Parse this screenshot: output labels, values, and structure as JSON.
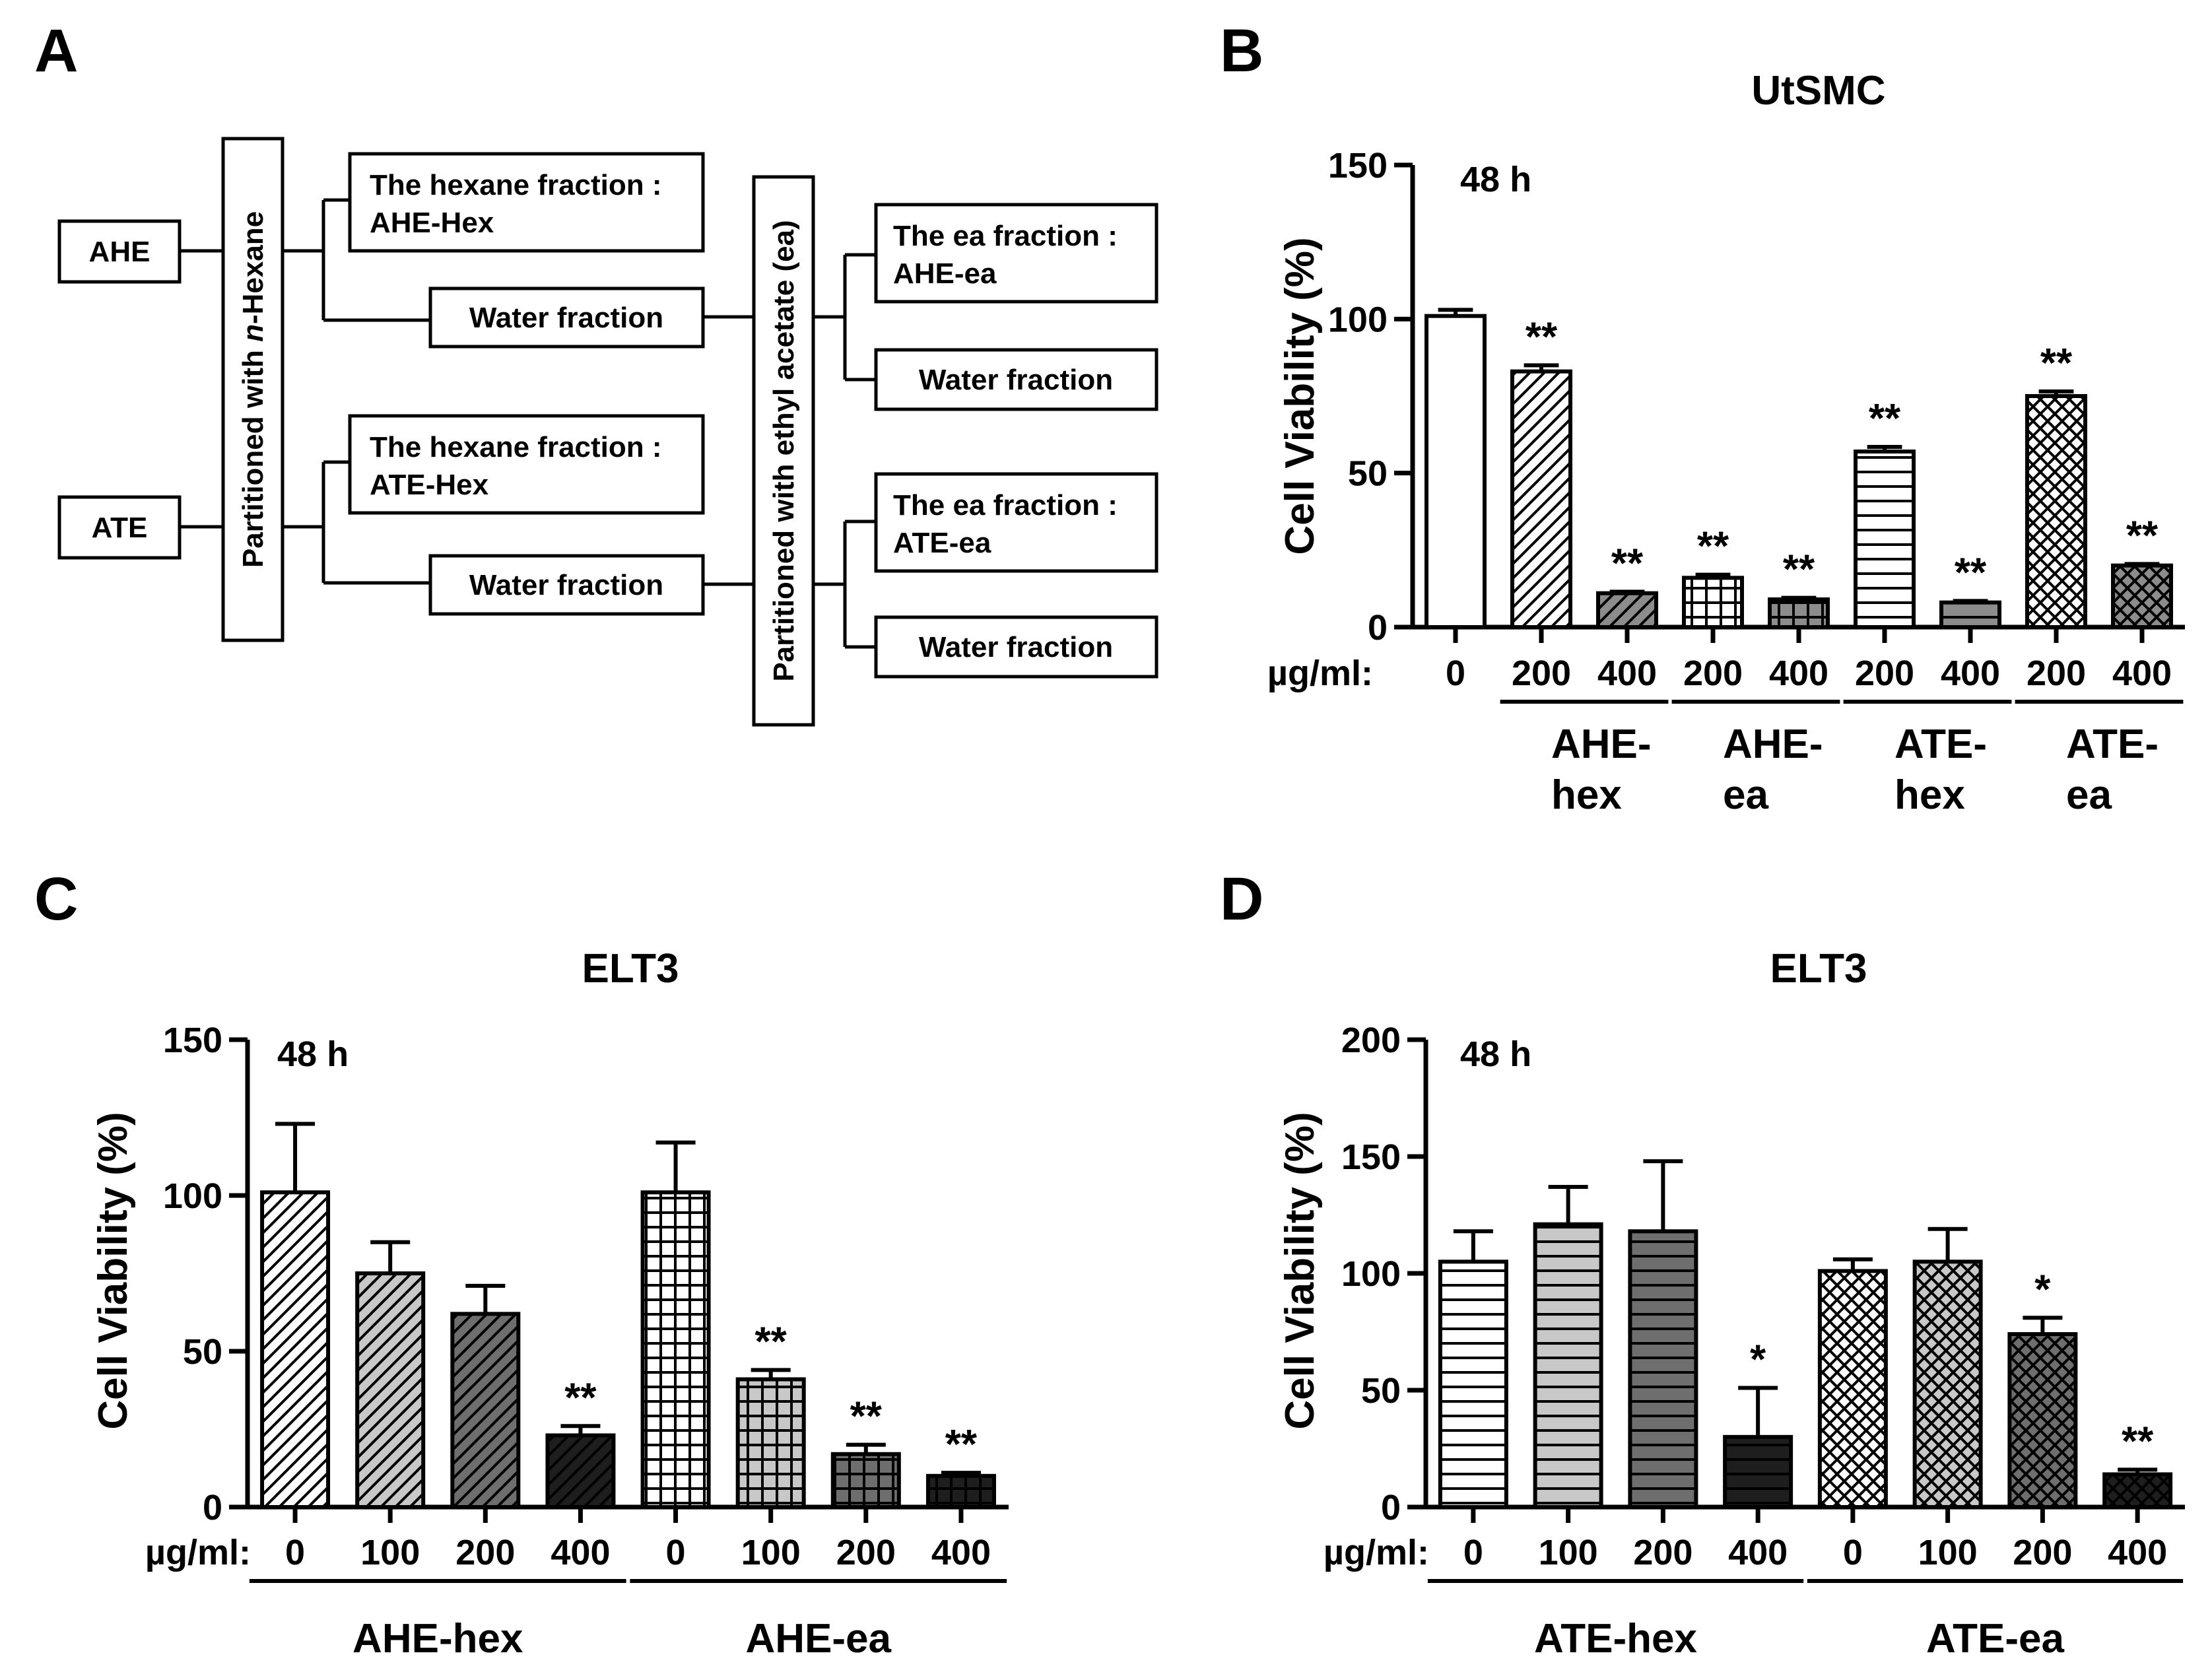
{
  "panels": {
    "A": "A",
    "B": "B",
    "C": "C",
    "D": "D"
  },
  "flowchart": {
    "nodes": [
      {
        "id": "ahe",
        "label": "AHE"
      },
      {
        "id": "ate",
        "label": "ATE"
      },
      {
        "id": "part-hex",
        "label": "Partitioned with n-Hexane",
        "pre": "Partitioned with ",
        "ital": "n",
        "post": "-Hexane"
      },
      {
        "id": "ahe-hex",
        "line1": "The hexane fraction :",
        "line2": "AHE-Hex"
      },
      {
        "id": "ate-hex",
        "line1": "The hexane fraction :",
        "line2": "ATE-Hex"
      },
      {
        "id": "water-ahe",
        "label": "Water fraction"
      },
      {
        "id": "water-ate",
        "label": "Water fraction"
      },
      {
        "id": "part-ea",
        "label": "Partitioned with ethyl acetate (ea)"
      },
      {
        "id": "ahe-ea",
        "line1": "The ea fraction :",
        "line2": "AHE-ea"
      },
      {
        "id": "water-ahe-ea",
        "label": "Water fraction"
      },
      {
        "id": "ate-ea",
        "line1": "The ea fraction :",
        "line2": "ATE-ea"
      },
      {
        "id": "water-ate-ea",
        "label": "Water fraction"
      }
    ]
  },
  "chart_data": [
    {
      "panel": "B",
      "type": "bar",
      "title": "UtSMC",
      "annotation": "48 h",
      "ylabel": "Cell Viability (%)",
      "xprefix": "µg/ml:",
      "ylim": [
        0,
        150
      ],
      "yticks": [
        0,
        50,
        100,
        150
      ],
      "categories": [
        "0",
        "200",
        "400",
        "200",
        "400",
        "200",
        "400",
        "200",
        "400"
      ],
      "values": [
        101,
        83,
        11,
        16,
        9,
        57,
        8,
        75,
        20
      ],
      "errors": [
        2,
        2,
        0.5,
        1,
        0.5,
        1.5,
        0.5,
        1.5,
        0.5
      ],
      "significance": [
        "",
        "**",
        "**",
        "**",
        "**",
        "**",
        "**",
        "**",
        "**"
      ],
      "patterns": [
        "white",
        "diag-white",
        "diag-gray",
        "grid-white",
        "grid-gray",
        "hstripe-white",
        "hstripe-gray",
        "cross-white",
        "cross-gray"
      ],
      "groups": [
        {
          "line1": "AHE-",
          "line2": "hex",
          "start": 1,
          "end": 2
        },
        {
          "line1": "AHE-",
          "line2": "ea",
          "start": 3,
          "end": 4
        },
        {
          "line1": "ATE-",
          "line2": "hex",
          "start": 5,
          "end": 6
        },
        {
          "line1": "ATE-",
          "line2": "ea",
          "start": 7,
          "end": 8
        }
      ]
    },
    {
      "panel": "C",
      "type": "bar",
      "title": "ELT3",
      "annotation": "48 h",
      "ylabel": "Cell Viability (%)",
      "xprefix": "µg/ml:",
      "ylim": [
        0,
        150
      ],
      "yticks": [
        0,
        50,
        100,
        150
      ],
      "categories": [
        "0",
        "100",
        "200",
        "400",
        "0",
        "100",
        "200",
        "400"
      ],
      "values": [
        101,
        75,
        62,
        23,
        101,
        41,
        17,
        10
      ],
      "errors": [
        22,
        10,
        9,
        3,
        16,
        3,
        3,
        1
      ],
      "significance": [
        "",
        "",
        "",
        "**",
        "",
        "**",
        "**",
        "**"
      ],
      "patterns": [
        "diag-white",
        "diag-lightgray",
        "diag-darkgray",
        "diag-black",
        "grid-white",
        "grid-lightgray",
        "grid-darkgray",
        "grid-black"
      ],
      "groups": [
        {
          "line1": "AHE-hex",
          "start": 0,
          "end": 3
        },
        {
          "line1": "AHE-ea",
          "start": 4,
          "end": 7
        }
      ]
    },
    {
      "panel": "D",
      "type": "bar",
      "title": "ELT3",
      "annotation": "48 h",
      "ylabel": "Cell Viability (%)",
      "xprefix": "µg/ml:",
      "ylim": [
        0,
        200
      ],
      "yticks": [
        0,
        50,
        100,
        150,
        200
      ],
      "categories": [
        "0",
        "100",
        "200",
        "400",
        "0",
        "100",
        "200",
        "400"
      ],
      "values": [
        105,
        121,
        118,
        30,
        101,
        105,
        74,
        14
      ],
      "errors": [
        13,
        16,
        30,
        21,
        5,
        14,
        7,
        2
      ],
      "significance": [
        "",
        "",
        "",
        "*",
        "",
        "",
        "*",
        "**"
      ],
      "patterns": [
        "hstripe-white",
        "hstripe-lightgray",
        "hstripe-darkgray",
        "hstripe-black",
        "cross-white",
        "cross-lightgray",
        "cross-darkgray",
        "cross-black"
      ],
      "groups": [
        {
          "line1": "ATE-hex",
          "start": 0,
          "end": 3
        },
        {
          "line1": "ATE-ea",
          "start": 4,
          "end": 7
        }
      ]
    }
  ]
}
